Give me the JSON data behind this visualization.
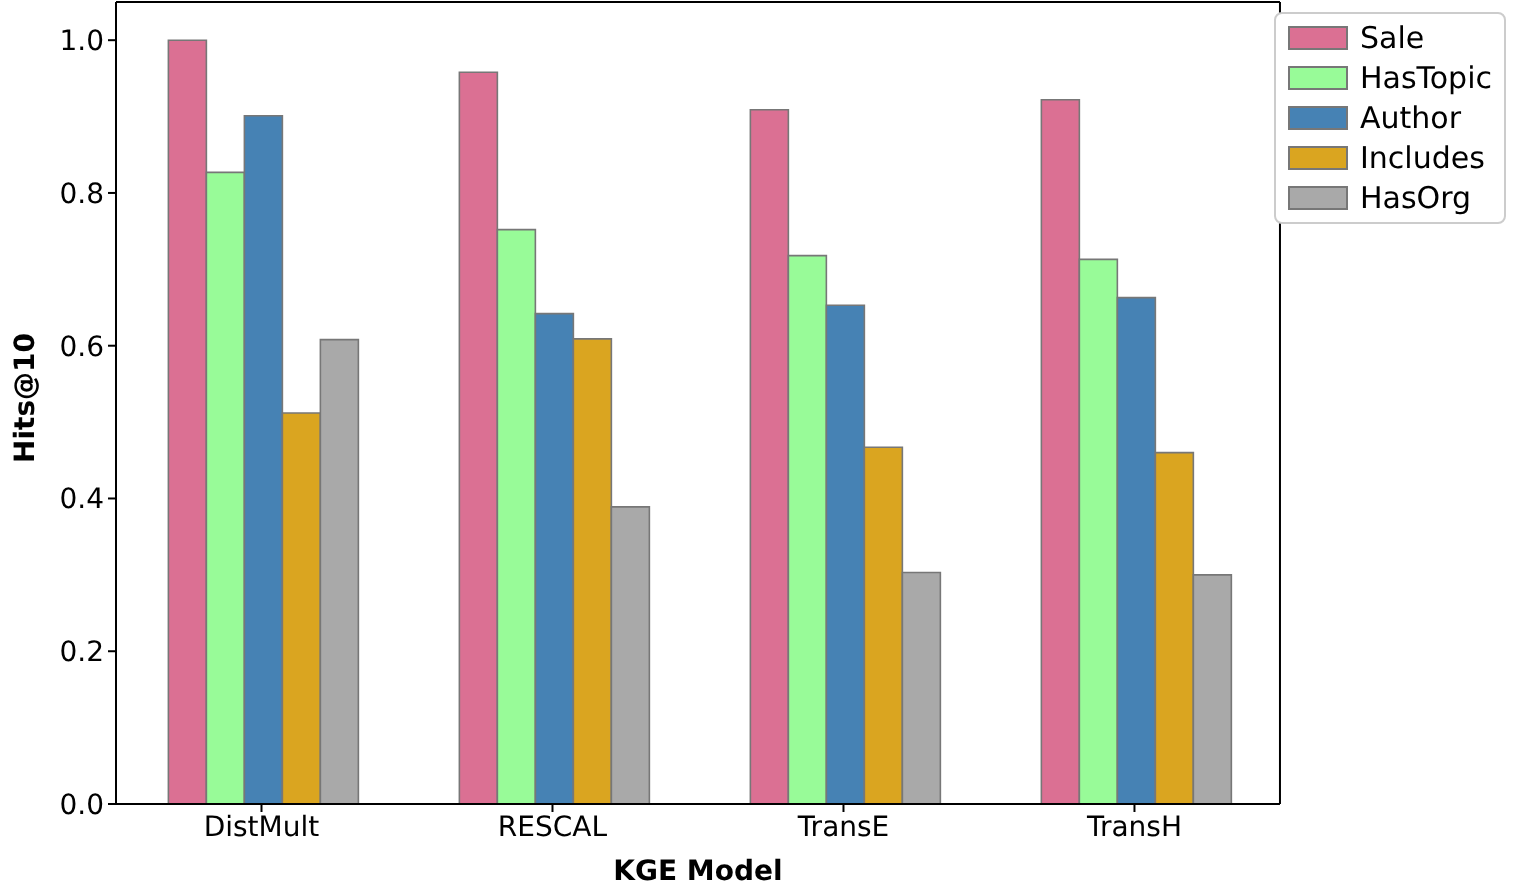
{
  "chart_data": {
    "type": "bar",
    "xlabel": "KGE Model",
    "ylabel": "Hits@10",
    "categories": [
      "DistMult",
      "RESCAL",
      "TransE",
      "TransH"
    ],
    "series": [
      {
        "name": "Sale",
        "color": "#db7093",
        "values": [
          1.0,
          0.958,
          0.909,
          0.922
        ]
      },
      {
        "name": "HasTopic",
        "color": "#98fb98",
        "values": [
          0.827,
          0.752,
          0.718,
          0.713
        ]
      },
      {
        "name": "Author",
        "color": "#4682b4",
        "values": [
          0.901,
          0.642,
          0.653,
          0.663
        ]
      },
      {
        "name": "Includes",
        "color": "#daa520",
        "values": [
          0.512,
          0.609,
          0.467,
          0.46
        ]
      },
      {
        "name": "HasOrg",
        "color": "#a9a9a9",
        "values": [
          0.608,
          0.389,
          0.303,
          0.3
        ]
      }
    ],
    "ylim": [
      0,
      1.05
    ],
    "yticks": [
      {
        "value": 0,
        "label": "0.0"
      },
      {
        "value": 0.2,
        "label": "0.2"
      },
      {
        "value": 0.4,
        "label": "0.4"
      },
      {
        "value": 0.6,
        "label": "0.6"
      },
      {
        "value": 0.8,
        "label": "0.8"
      },
      {
        "value": 1,
        "label": "1.0"
      }
    ],
    "grid": false,
    "legend": "top right"
  }
}
